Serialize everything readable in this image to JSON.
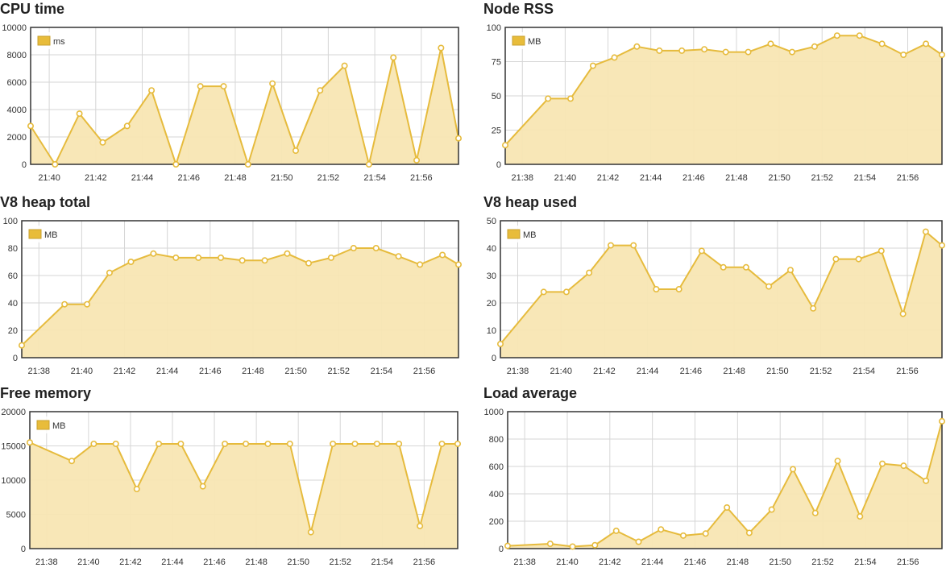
{
  "colors": {
    "line": "#e6bb3d",
    "fill": "#f8e6b3",
    "grid": "#d6d6d6",
    "frame": "#333333",
    "point_fill": "#ffffff"
  },
  "chart_data": [
    {
      "type": "area",
      "title": "CPU time",
      "legend": "ms",
      "legend_position": "top-left",
      "grid": true,
      "ylim": [
        0,
        10000
      ],
      "yticks": [
        "0",
        "2000",
        "4000",
        "6000",
        "8000",
        "10000"
      ],
      "xlim": [
        39.2,
        57.6
      ],
      "xticks": [
        "21:40",
        "21:42",
        "21:44",
        "21:46",
        "21:48",
        "21:50",
        "21:52",
        "21:54",
        "21:56"
      ],
      "x": [
        39.2,
        40.25,
        41.3,
        42.3,
        43.35,
        44.4,
        45.45,
        46.5,
        47.5,
        48.55,
        49.6,
        50.6,
        51.65,
        52.7,
        53.75,
        54.8,
        55.8,
        56.85,
        57.6
      ],
      "y": [
        2800,
        0,
        3700,
        1600,
        2800,
        5400,
        0,
        5700,
        5700,
        0,
        5900,
        1000,
        5400,
        7200,
        0,
        7800,
        300,
        8500,
        1900
      ]
    },
    {
      "type": "area",
      "title": "Node RSS",
      "legend": "MB",
      "legend_position": "top-left",
      "grid": true,
      "ylim": [
        0,
        100
      ],
      "yticks": [
        "0",
        "25",
        "50",
        "75",
        "100"
      ],
      "xlim": [
        37.2,
        57.6
      ],
      "xticks": [
        "21:38",
        "21:40",
        "21:42",
        "21:44",
        "21:46",
        "21:48",
        "21:50",
        "21:52",
        "21:54",
        "21:56"
      ],
      "x": [
        37.2,
        39.2,
        40.25,
        41.3,
        42.3,
        43.35,
        44.4,
        45.45,
        46.5,
        47.5,
        48.55,
        49.6,
        50.6,
        51.65,
        52.7,
        53.75,
        54.8,
        55.8,
        56.85,
        57.6
      ],
      "y": [
        14,
        48,
        48,
        72,
        78,
        86,
        83,
        83,
        84,
        82,
        82,
        88,
        82,
        86,
        94,
        94,
        88,
        80,
        88,
        80
      ]
    },
    {
      "type": "area",
      "title": "V8 heap total",
      "legend": "MB",
      "legend_position": "top-left",
      "grid": true,
      "ylim": [
        0,
        100
      ],
      "yticks": [
        "0",
        "20",
        "40",
        "60",
        "80",
        "100"
      ],
      "xlim": [
        37.2,
        57.6
      ],
      "xticks": [
        "21:38",
        "21:40",
        "21:42",
        "21:44",
        "21:46",
        "21:48",
        "21:50",
        "21:52",
        "21:54",
        "21:56"
      ],
      "x": [
        37.2,
        39.2,
        40.25,
        41.3,
        42.3,
        43.35,
        44.4,
        45.45,
        46.5,
        47.5,
        48.55,
        49.6,
        50.6,
        51.65,
        52.7,
        53.75,
        54.8,
        55.8,
        56.85,
        57.6
      ],
      "y": [
        9,
        39,
        39,
        62,
        70,
        76,
        73,
        73,
        73,
        71,
        71,
        76,
        69,
        73,
        80,
        80,
        74,
        68,
        75,
        68
      ]
    },
    {
      "type": "area",
      "title": "V8 heap used",
      "legend": "MB",
      "legend_position": "top-left",
      "grid": true,
      "ylim": [
        0,
        50
      ],
      "yticks": [
        "0",
        "10",
        "20",
        "30",
        "40",
        "50"
      ],
      "xlim": [
        37.2,
        57.6
      ],
      "xticks": [
        "21:38",
        "21:40",
        "21:42",
        "21:44",
        "21:46",
        "21:48",
        "21:50",
        "21:52",
        "21:54",
        "21:56"
      ],
      "x": [
        37.2,
        39.2,
        40.25,
        41.3,
        42.3,
        43.35,
        44.4,
        45.45,
        46.5,
        47.5,
        48.55,
        49.6,
        50.6,
        51.65,
        52.7,
        53.75,
        54.8,
        55.8,
        56.85,
        57.6
      ],
      "y": [
        5,
        24,
        24,
        31,
        41,
        41,
        25,
        25,
        39,
        33,
        33,
        26,
        32,
        18,
        36,
        36,
        39,
        16,
        46,
        41
      ]
    },
    {
      "type": "area",
      "title": "Free memory",
      "legend": "MB",
      "legend_position": "top-left",
      "grid": true,
      "ylim": [
        0,
        20000
      ],
      "yticks": [
        "0",
        "5000",
        "10000",
        "15000",
        "20000"
      ],
      "xlim": [
        37.2,
        57.6
      ],
      "xticks": [
        "21:38",
        "21:40",
        "21:42",
        "21:44",
        "21:46",
        "21:48",
        "21:50",
        "21:52",
        "21:54",
        "21:56"
      ],
      "x": [
        37.2,
        39.2,
        40.25,
        41.3,
        42.3,
        43.35,
        44.4,
        45.45,
        46.5,
        47.5,
        48.55,
        49.6,
        50.6,
        51.65,
        52.7,
        53.75,
        54.8,
        55.8,
        56.85,
        57.6
      ],
      "y": [
        15500,
        12800,
        15300,
        15300,
        8700,
        15300,
        15300,
        9100,
        15300,
        15300,
        15300,
        15300,
        2400,
        15300,
        15300,
        15300,
        15300,
        3300,
        15300,
        15300
      ]
    },
    {
      "type": "area",
      "title": "Load average",
      "legend": "",
      "legend_position": "none",
      "grid": true,
      "ylim": [
        0,
        1000
      ],
      "yticks": [
        "0",
        "200",
        "400",
        "600",
        "800",
        "1000"
      ],
      "xlim": [
        37.2,
        57.6
      ],
      "xticks": [
        "21:38",
        "21:40",
        "21:42",
        "21:44",
        "21:46",
        "21:48",
        "21:50",
        "21:52",
        "21:54",
        "21:56"
      ],
      "x": [
        37.2,
        39.2,
        40.25,
        41.3,
        42.3,
        43.35,
        44.4,
        45.45,
        46.5,
        47.5,
        48.55,
        49.6,
        50.6,
        51.65,
        52.7,
        53.75,
        54.8,
        55.8,
        56.85,
        57.6
      ],
      "y": [
        20,
        35,
        15,
        25,
        130,
        50,
        140,
        95,
        110,
        300,
        115,
        285,
        580,
        260,
        640,
        235,
        620,
        605,
        495,
        930
      ]
    }
  ]
}
